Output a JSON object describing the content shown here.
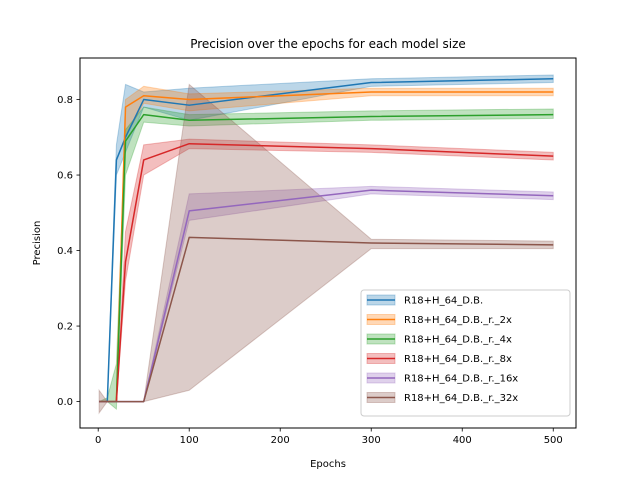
{
  "chart_data": {
    "type": "line",
    "title": "Precision over the epochs for each model size",
    "xlabel": "Epochs",
    "ylabel": "Precision",
    "xlim": [
      -20,
      525
    ],
    "ylim": [
      -0.07,
      0.91
    ],
    "xticks": [
      0,
      100,
      200,
      300,
      400,
      500
    ],
    "yticks": [
      0.0,
      0.2,
      0.4,
      0.6,
      0.8
    ],
    "ytick_labels": [
      "0.0",
      "0.2",
      "0.4",
      "0.6",
      "0.8"
    ],
    "grid": false,
    "legend_position": "lower-right",
    "x": [
      1,
      10,
      20,
      30,
      50,
      100,
      300,
      500
    ],
    "series": [
      {
        "name": "R18+H_64_D.B.",
        "color": "#1f77b4",
        "values": [
          0.0,
          0.0,
          0.64,
          0.7,
          0.8,
          0.785,
          0.845,
          0.855
        ],
        "lower": [
          0.0,
          0.0,
          0.6,
          0.66,
          0.78,
          0.745,
          0.835,
          0.845
        ],
        "upper": [
          0.0,
          0.0,
          0.68,
          0.84,
          0.82,
          0.83,
          0.855,
          0.865
        ]
      },
      {
        "name": "R18+H_64_D.B._r._2x",
        "color": "#ff7f0e",
        "values": [
          0.0,
          0.0,
          0.0,
          0.78,
          0.81,
          0.8,
          0.82,
          0.82
        ],
        "lower": [
          0.0,
          0.0,
          0.0,
          0.7,
          0.79,
          0.77,
          0.81,
          0.81
        ],
        "upper": [
          0.0,
          0.0,
          0.0,
          0.8,
          0.835,
          0.815,
          0.83,
          0.83
        ]
      },
      {
        "name": "R18+H_64_D.B._r._4x",
        "color": "#2ca02c",
        "values": [
          0.0,
          0.0,
          0.0,
          0.69,
          0.76,
          0.745,
          0.755,
          0.76
        ],
        "lower": [
          0.0,
          0.0,
          -0.02,
          0.6,
          0.74,
          0.73,
          0.745,
          0.75
        ],
        "upper": [
          0.0,
          0.01,
          0.1,
          0.72,
          0.78,
          0.76,
          0.77,
          0.775
        ]
      },
      {
        "name": "R18+H_64_D.B._r._8x",
        "color": "#d62728",
        "values": [
          0.0,
          0.0,
          0.0,
          0.37,
          0.64,
          0.683,
          0.67,
          0.65
        ],
        "lower": [
          0.0,
          0.0,
          0.0,
          0.32,
          0.6,
          0.67,
          0.66,
          0.64
        ],
        "upper": [
          0.0,
          0.0,
          0.0,
          0.45,
          0.68,
          0.695,
          0.68,
          0.66
        ]
      },
      {
        "name": "R18+H_64_D.B._r._16x",
        "color": "#9467bd",
        "values": [
          0.0,
          0.0,
          0.0,
          0.0,
          0.0,
          0.505,
          0.56,
          0.545
        ],
        "lower": [
          0.0,
          0.0,
          0.0,
          0.0,
          0.0,
          0.48,
          0.55,
          0.535
        ],
        "upper": [
          0.0,
          0.0,
          0.0,
          0.0,
          0.0,
          0.55,
          0.57,
          0.555
        ]
      },
      {
        "name": "R18+H_64_D.B._r._32x",
        "color": "#8c564b",
        "values": [
          0.0,
          0.0,
          0.0,
          0.0,
          0.0,
          0.435,
          0.42,
          0.415
        ],
        "lower": [
          -0.03,
          0.0,
          0.0,
          0.0,
          0.0,
          0.03,
          0.405,
          0.405
        ],
        "upper": [
          0.03,
          0.0,
          0.0,
          0.0,
          0.0,
          0.84,
          0.43,
          0.425
        ]
      }
    ]
  }
}
